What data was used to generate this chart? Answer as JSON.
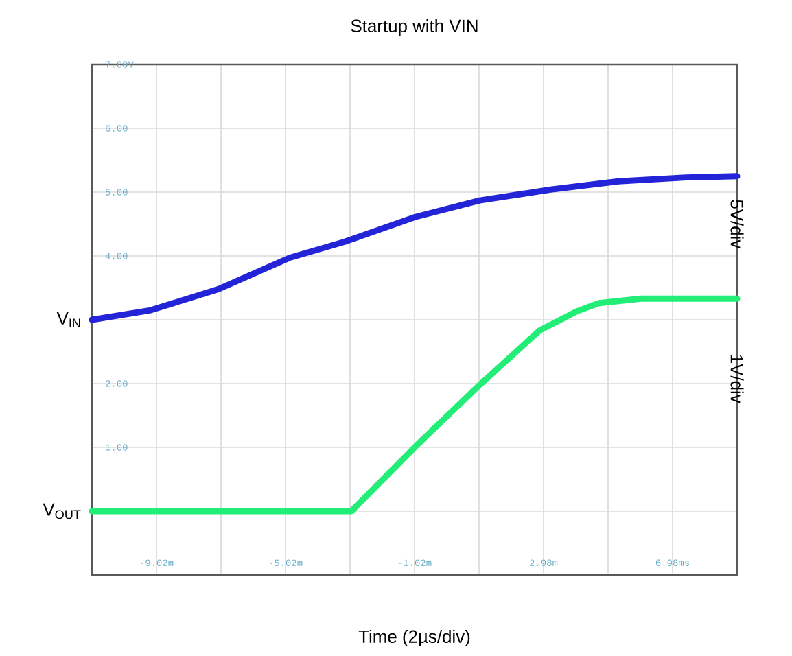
{
  "chart_data": {
    "type": "line",
    "title": "Startup with VIN",
    "xlabel": "Time (2µs/div)",
    "xlim": [
      -11.02,
      8.98
    ],
    "ylim": [
      -1,
      7
    ],
    "xticks": [
      {
        "value": -9.02,
        "label": "-9.02m"
      },
      {
        "value": -7.02,
        "label": null
      },
      {
        "value": -5.02,
        "label": "-5.02m"
      },
      {
        "value": -3.02,
        "label": null
      },
      {
        "value": -1.02,
        "label": "-1.02m"
      },
      {
        "value": 0.98,
        "label": null
      },
      {
        "value": 2.98,
        "label": "2.98m"
      },
      {
        "value": 4.98,
        "label": null
      },
      {
        "value": 6.98,
        "label": "6.98ms"
      }
    ],
    "yticks": [
      {
        "value": 0,
        "label": null
      },
      {
        "value": 1,
        "label": "1.00"
      },
      {
        "value": 2,
        "label": "2.00"
      },
      {
        "value": 3,
        "label": null
      },
      {
        "value": 4,
        "label": "4.00"
      },
      {
        "value": 5,
        "label": "5.00"
      },
      {
        "value": 6,
        "label": "6.00"
      },
      {
        "value": 7,
        "label": "7.00V"
      }
    ],
    "grid": true,
    "marker": "none",
    "line_style": "solid",
    "series": [
      {
        "color": "#2323d8",
        "x": [
          -11.02,
          -9.2,
          -7.1,
          -4.9,
          -3.2,
          -1.0,
          1.0,
          3.2,
          5.3,
          7.4,
          8.98
        ],
        "values": [
          3.0,
          3.15,
          3.48,
          3.97,
          4.22,
          4.61,
          4.87,
          5.04,
          5.17,
          5.23,
          5.25
        ]
      },
      {
        "color": "#22ee77",
        "x": [
          -11.02,
          -2.98,
          -1.0,
          1.0,
          2.85,
          4.0,
          4.7,
          6.0,
          8.98
        ],
        "values": [
          0.0,
          0.0,
          1.01,
          1.98,
          2.83,
          3.13,
          3.26,
          3.33,
          3.33
        ]
      }
    ],
    "annotations": [
      {
        "text": "V$_{IN}$",
        "x": -11.02,
        "y": 3
      },
      {
        "text": "V$_{OUT}$",
        "x": -11.02,
        "y": 0
      },
      "5V/div",
      "1V/div"
    ]
  }
}
